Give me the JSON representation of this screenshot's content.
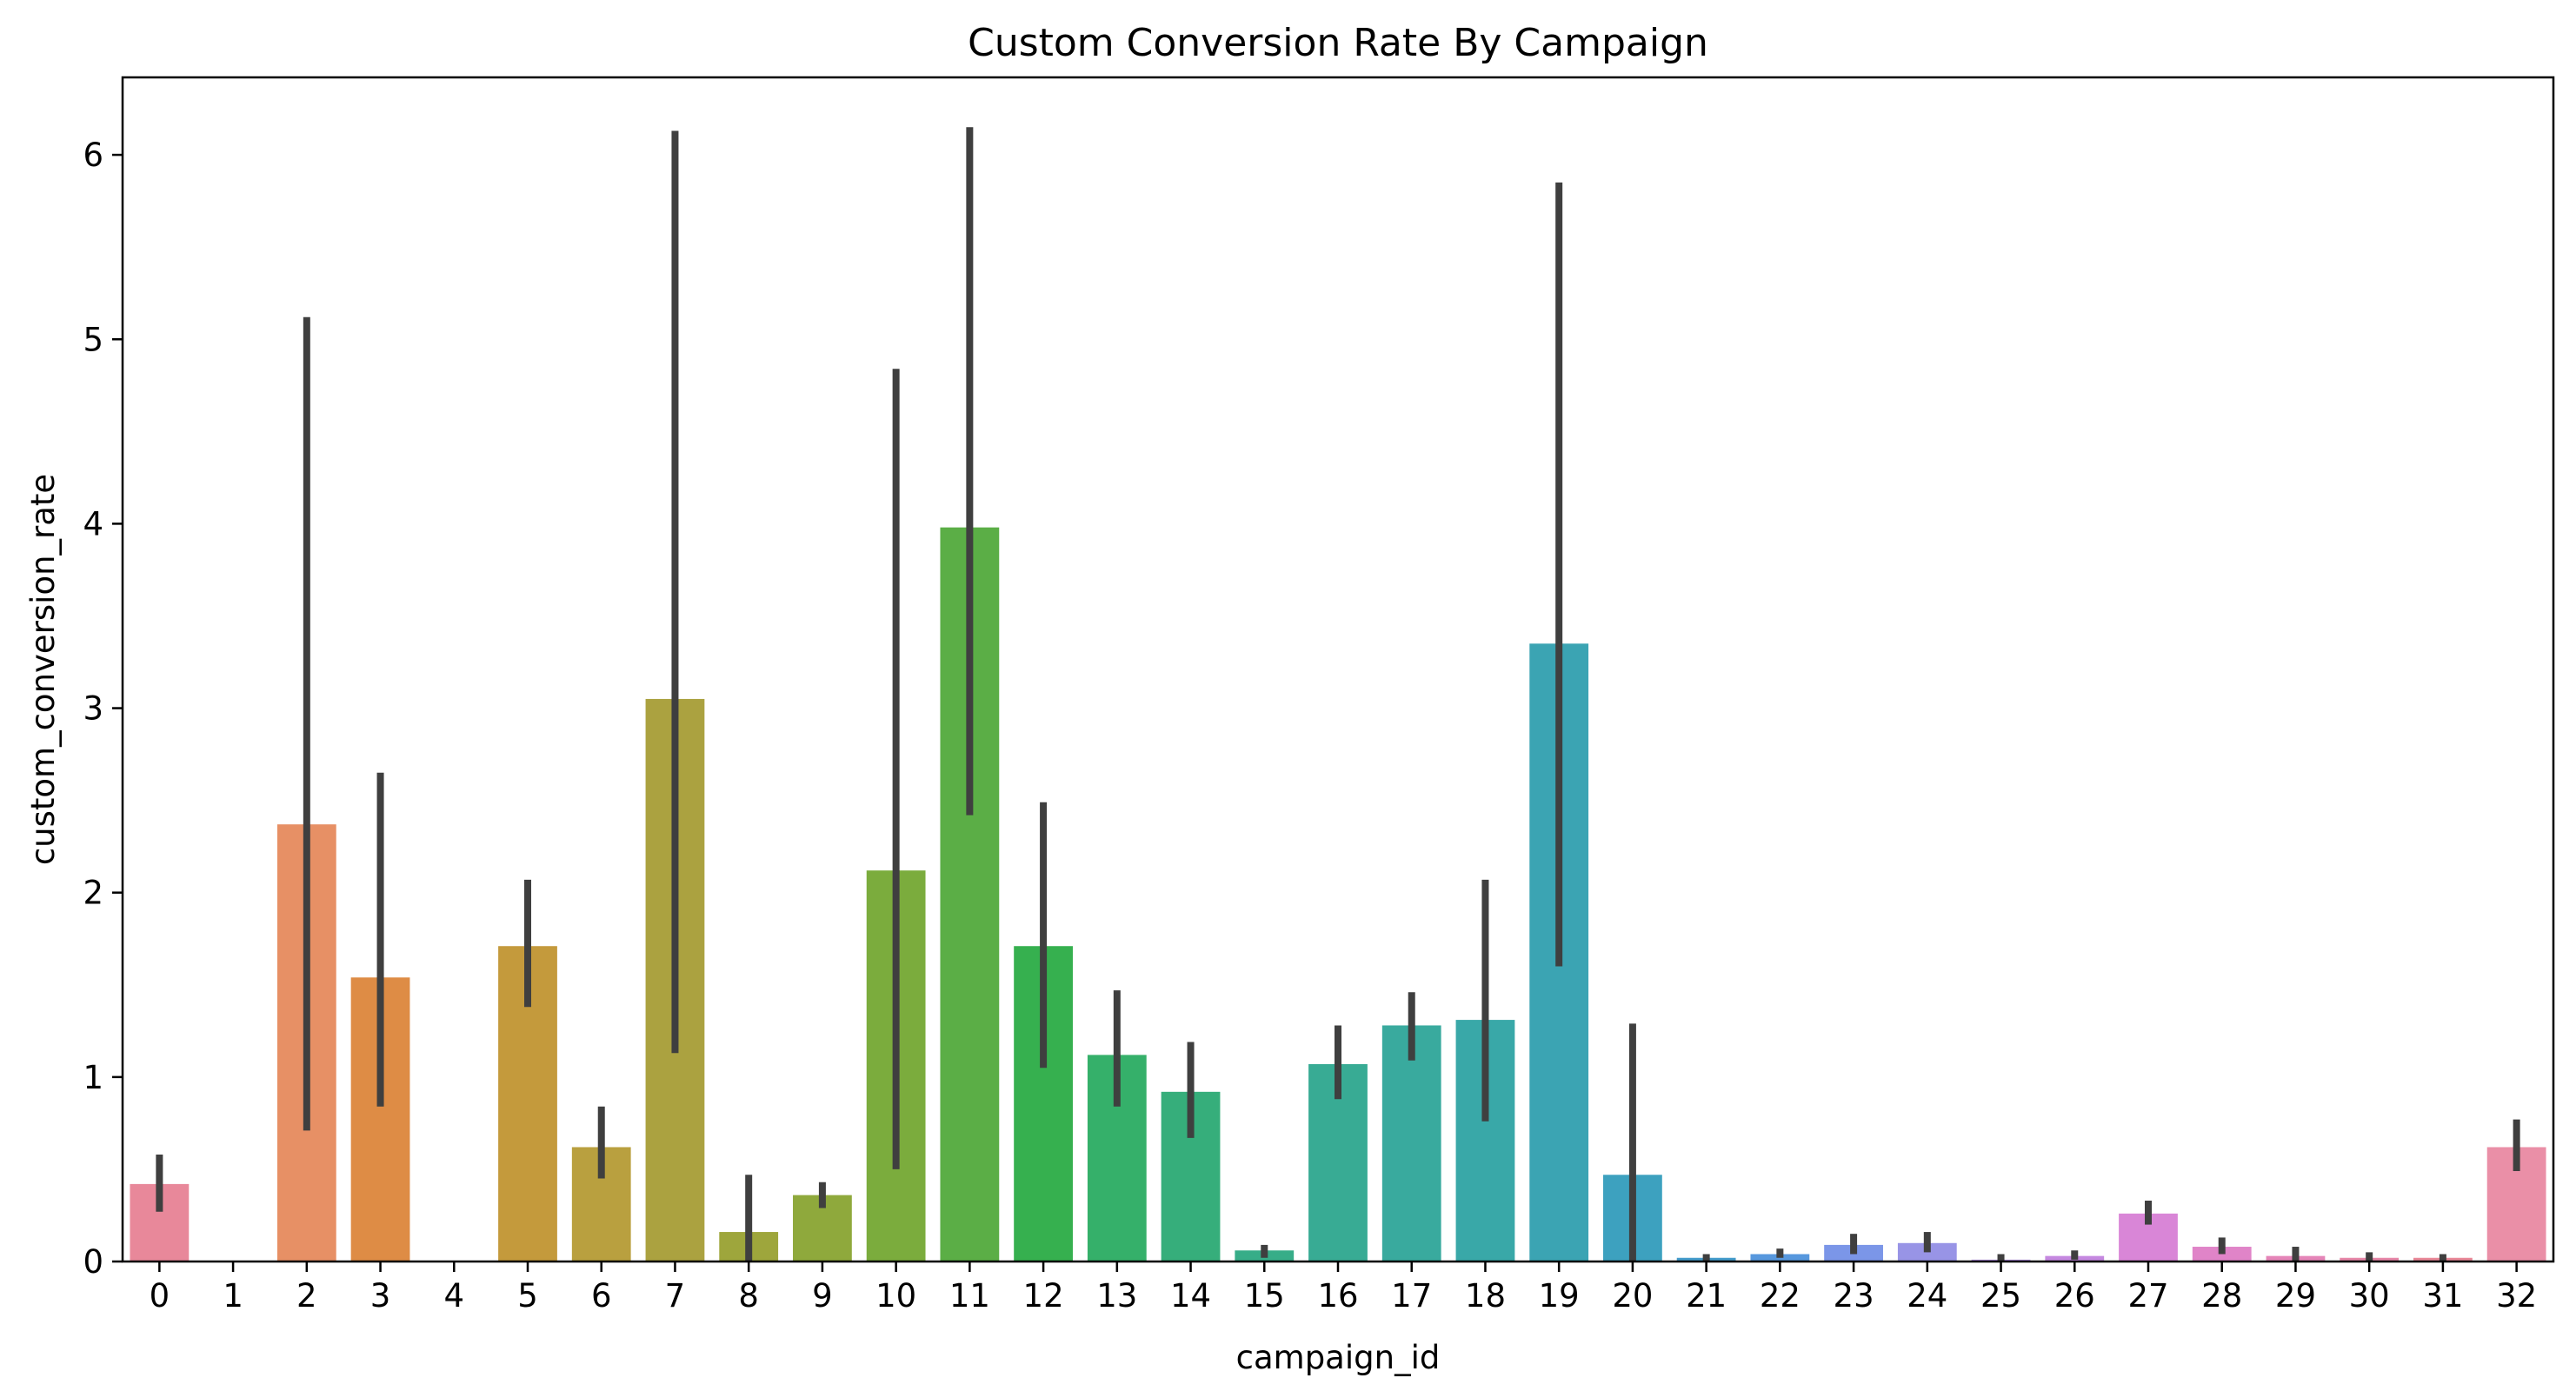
{
  "chart_data": {
    "type": "bar",
    "title": "Custom Conversion Rate By Campaign",
    "xlabel": "campaign_id",
    "ylabel": "custom_conversion_rate",
    "ylim": [
      0,
      6.42
    ],
    "yticks": [
      0,
      1,
      2,
      3,
      4,
      5,
      6
    ],
    "grid": false,
    "legend": "none",
    "categories": [
      "0",
      "1",
      "2",
      "3",
      "4",
      "5",
      "6",
      "7",
      "8",
      "9",
      "10",
      "11",
      "12",
      "13",
      "14",
      "15",
      "16",
      "17",
      "18",
      "19",
      "20",
      "21",
      "22",
      "23",
      "24",
      "25",
      "26",
      "27",
      "28",
      "29",
      "30",
      "31",
      "32"
    ],
    "values": [
      0.42,
      0.0,
      2.37,
      1.54,
      0.0,
      1.71,
      0.62,
      3.05,
      0.16,
      0.36,
      2.12,
      3.98,
      1.71,
      1.12,
      0.92,
      0.06,
      1.07,
      1.28,
      1.31,
      3.35,
      0.47,
      0.02,
      0.04,
      0.09,
      0.1,
      0.01,
      0.03,
      0.26,
      0.08,
      0.03,
      0.02,
      0.02,
      0.62
    ],
    "error_low": [
      0.27,
      0.0,
      0.71,
      0.84,
      0.0,
      1.38,
      0.45,
      1.13,
      0.0,
      0.29,
      0.5,
      2.42,
      1.05,
      0.84,
      0.67,
      0.02,
      0.88,
      1.09,
      0.76,
      1.6,
      0.0,
      0.0,
      0.02,
      0.04,
      0.05,
      0.0,
      0.01,
      0.2,
      0.04,
      0.0,
      0.0,
      0.0,
      0.49
    ],
    "error_high": [
      0.58,
      0.0,
      5.12,
      2.65,
      0.0,
      2.07,
      0.84,
      6.13,
      0.47,
      0.43,
      4.84,
      6.15,
      2.49,
      1.47,
      1.19,
      0.09,
      1.28,
      1.46,
      2.07,
      5.85,
      1.29,
      0.04,
      0.07,
      0.15,
      0.16,
      0.04,
      0.06,
      0.33,
      0.13,
      0.08,
      0.05,
      0.04,
      0.77
    ],
    "colors": [
      "#e8889a",
      "#e98c7b",
      "#e79065",
      "#de8c45",
      "#d09236",
      "#c49a3c",
      "#b9a03f",
      "#aba240",
      "#9ea63c",
      "#8fa93c",
      "#7bac3d",
      "#5bae46",
      "#36b04f",
      "#35b06a",
      "#36ae7b",
      "#37ad88",
      "#38ab94",
      "#39aa9e",
      "#39a8a8",
      "#3ba4b3",
      "#3da1bf",
      "#449ccc",
      "#5798de",
      "#7b96e8",
      "#9894e6",
      "#b18ee4",
      "#c588e0",
      "#d986d7",
      "#e084c8",
      "#e585b8",
      "#e787a8",
      "#e98898",
      "#ea8fa7"
    ],
    "error_bar_color": "#3f3f3f"
  }
}
